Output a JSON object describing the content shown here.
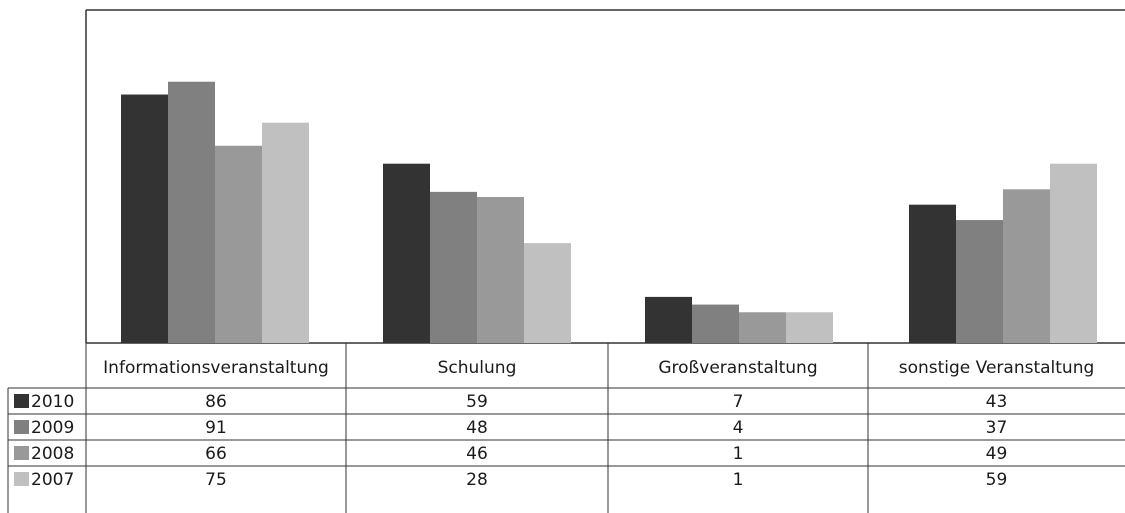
{
  "chart_data": {
    "type": "bar",
    "categories": [
      "Informationsveranstaltung",
      "Schulung",
      "Großveranstaltung",
      "sonstige Veranstaltung"
    ],
    "series": [
      {
        "name": "2010",
        "values": [
          86,
          59,
          7,
          43
        ],
        "color": "#333333"
      },
      {
        "name": "2009",
        "values": [
          91,
          48,
          4,
          37
        ],
        "color": "#808080"
      },
      {
        "name": "2008",
        "values": [
          66,
          46,
          1,
          49
        ],
        "color": "#999999"
      },
      {
        "name": "2007",
        "values": [
          75,
          28,
          1,
          59
        ],
        "color": "#c0c0c0"
      }
    ],
    "ylim": [
      -11,
      119
    ],
    "grid": false,
    "legend": "data-table-left",
    "title": "",
    "xlabel": "",
    "ylabel": ""
  }
}
